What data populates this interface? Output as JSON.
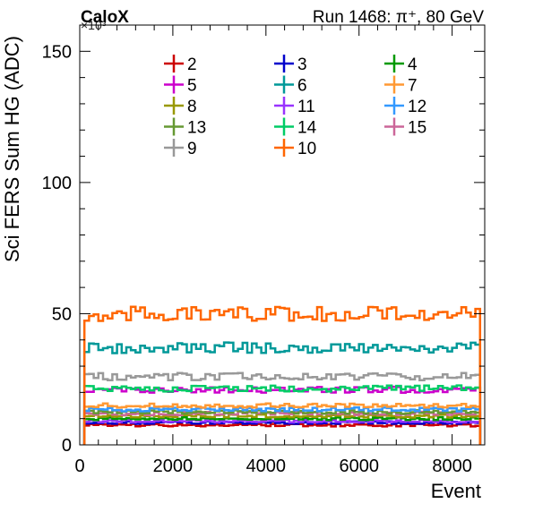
{
  "chart_data": {
    "type": "line",
    "header_left": "CaloX",
    "header_right": "Run 1468:   π⁺, 80 GeV",
    "xlabel": "Event",
    "ylabel": "Sci FERS Sum HG (ADC)",
    "y_multiplier": "×10³",
    "xlim": [
      0,
      8700
    ],
    "ylim": [
      0,
      160
    ],
    "x_ticks": [
      0,
      2000,
      4000,
      6000,
      8000
    ],
    "y_ticks": [
      0,
      50,
      100,
      150
    ],
    "bin_width": 100,
    "x_range": [
      100,
      8600
    ],
    "legend_position": "top",
    "series": [
      {
        "name": "2",
        "color": "#cc0000",
        "mean": 7.5
      },
      {
        "name": "3",
        "color": "#0000cc",
        "mean": 8.5
      },
      {
        "name": "4",
        "color": "#009900",
        "mean": 10.0
      },
      {
        "name": "5",
        "color": "#cc00cc",
        "mean": 21.0
      },
      {
        "name": "6",
        "color": "#009999",
        "mean": 37.0
      },
      {
        "name": "7",
        "color": "#ff9933",
        "mean": 15.0
      },
      {
        "name": "8",
        "color": "#999900",
        "mean": 11.0
      },
      {
        "name": "11",
        "color": "#9933ff",
        "mean": 9.0
      },
      {
        "name": "12",
        "color": "#3399ff",
        "mean": 13.5
      },
      {
        "name": "13",
        "color": "#669933",
        "mean": 12.5
      },
      {
        "name": "14",
        "color": "#00cc66",
        "mean": 21.5
      },
      {
        "name": "15",
        "color": "#cc6699",
        "mean": 12.0
      },
      {
        "name": "9",
        "color": "#999999",
        "mean": 26.0
      },
      {
        "name": "10",
        "color": "#ff6600",
        "mean": 50.0
      }
    ]
  }
}
